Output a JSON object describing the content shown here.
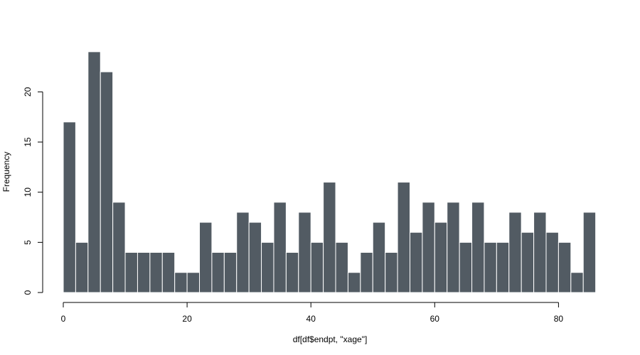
{
  "chart_data": {
    "type": "bar",
    "title": "",
    "xlabel": "df[df$endpt, \"xage\"]",
    "ylabel": "Frequency",
    "bin_width": 2,
    "bin_start": 0,
    "values": [
      17,
      5,
      24,
      22,
      9,
      4,
      4,
      4,
      4,
      2,
      2,
      7,
      4,
      4,
      8,
      7,
      5,
      9,
      4,
      8,
      5,
      11,
      5,
      2,
      4,
      7,
      4,
      11,
      6,
      9,
      7,
      9,
      5,
      9,
      5,
      5,
      8,
      6,
      8,
      6,
      5,
      2,
      8
    ],
    "xlim": [
      0,
      86
    ],
    "ylim": [
      0,
      24
    ],
    "x_ticks": [
      0,
      20,
      40,
      60,
      80
    ],
    "y_ticks": [
      0,
      5,
      10,
      15,
      20
    ],
    "x_tick_labels": [
      "0",
      "20",
      "40",
      "60",
      "80"
    ],
    "y_tick_labels": [
      "0",
      "5",
      "10",
      "15",
      "20"
    ],
    "grid": false,
    "bar_color": "#525b63",
    "bar_border_color": "#ffffff"
  }
}
